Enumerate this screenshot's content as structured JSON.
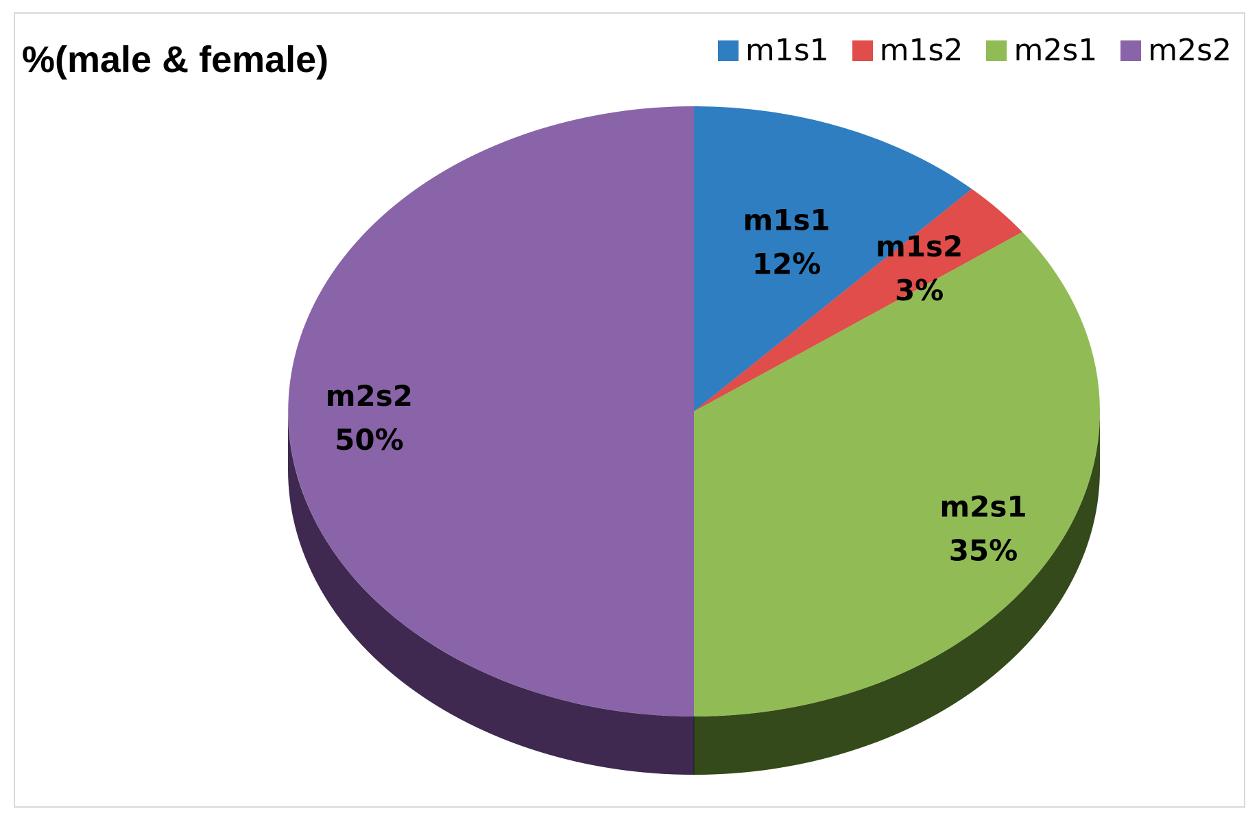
{
  "chart_data": {
    "type": "pie",
    "title": "%(male & female)",
    "legend_position": "top-right",
    "categories": [
      "m1s1",
      "m1s2",
      "m2s1",
      "m2s2"
    ],
    "values": [
      12,
      3,
      35,
      50
    ],
    "value_labels": [
      "12%",
      "3%",
      "35%",
      "50%"
    ],
    "colors": [
      "#2e7ec1",
      "#e04d4a",
      "#91bc55",
      "#8a64a8"
    ],
    "side_colors": [
      "#173f61",
      "#702725",
      "#344a1a",
      "#3f2950"
    ],
    "style": "3d"
  }
}
